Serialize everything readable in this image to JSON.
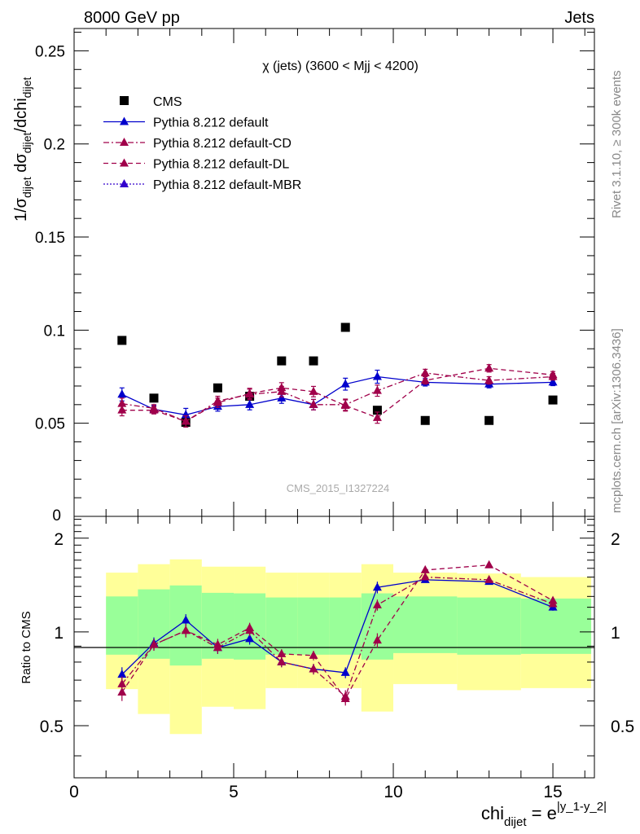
{
  "header": {
    "left": "8000 GeV pp",
    "right": "Jets",
    "side_top": "Rivet 3.1.10, ≥ 300k events",
    "side_bottom": "mcplots.cern.ch [arXiv:1306.3436]"
  },
  "chart_data": [
    {
      "type": "scatter",
      "title": "χ (jets) (3600 < Mjj < 4200)",
      "watermark": "CMS_2015_I1327224",
      "ylabel": "1/σdijet dσdijet/dchidijet",
      "ylim": [
        0,
        0.262
      ],
      "xlim": [
        0,
        16.3
      ],
      "yticks": [
        0.05,
        0.1,
        0.15,
        0.2,
        0.25
      ],
      "ytick_labels": [
        "0.05",
        "0.1",
        "0.15",
        "0.2",
        "0.25"
      ],
      "y_zero_label": "0",
      "legend_position": "top-left",
      "series": [
        {
          "name": "CMS",
          "style": "data",
          "color": "#000000",
          "x": [
            1.5,
            2.5,
            3.5,
            4.5,
            5.5,
            6.5,
            7.5,
            8.5,
            9.5,
            11,
            13,
            15
          ],
          "y": [
            0.0945,
            0.0635,
            0.0505,
            0.069,
            0.0645,
            0.0835,
            0.0835,
            0.1015,
            0.057,
            0.0515,
            0.0515,
            0.0625
          ]
        },
        {
          "name": "Pythia 8.212 default",
          "style": "solid",
          "color": "#0000cc",
          "x": [
            1.5,
            2.5,
            3.5,
            4.5,
            5.5,
            6.5,
            7.5,
            8.5,
            9.5,
            11,
            13,
            15
          ],
          "y": [
            0.0655,
            0.0575,
            0.0545,
            0.059,
            0.06,
            0.0635,
            0.06,
            0.071,
            0.075,
            0.072,
            0.071,
            0.072
          ],
          "err": [
            0.0035,
            0.002,
            0.0035,
            0.0025,
            0.0028,
            0.0028,
            0.0028,
            0.0032,
            0.0035,
            0.002,
            0.002,
            0.0018
          ]
        },
        {
          "name": "Pythia 8.212 default-CD",
          "style": "dashdot",
          "color": "#a0004a",
          "x": [
            1.5,
            2.5,
            3.5,
            4.5,
            5.5,
            6.5,
            7.5,
            8.5,
            9.5,
            11,
            13,
            15
          ],
          "y": [
            0.0605,
            0.058,
            0.051,
            0.062,
            0.0655,
            0.067,
            0.06,
            0.06,
            0.0675,
            0.077,
            0.073,
            0.075
          ],
          "err": [
            0.003,
            0.002,
            0.003,
            0.0025,
            0.0028,
            0.0028,
            0.0028,
            0.003,
            0.003,
            0.002,
            0.002,
            0.0018
          ]
        },
        {
          "name": "Pythia 8.212 default-DL",
          "style": "dashed",
          "color": "#a0004a",
          "x": [
            1.5,
            2.5,
            3.5,
            4.5,
            5.5,
            6.5,
            7.5,
            8.5,
            9.5,
            11,
            13,
            15
          ],
          "y": [
            0.057,
            0.057,
            0.051,
            0.061,
            0.066,
            0.069,
            0.067,
            0.0595,
            0.053,
            0.073,
            0.0795,
            0.076
          ],
          "err": [
            0.003,
            0.002,
            0.003,
            0.0025,
            0.0028,
            0.0028,
            0.0028,
            0.003,
            0.003,
            0.002,
            0.002,
            0.0018
          ]
        },
        {
          "name": "Pythia 8.212 default-MBR",
          "style": "dotted",
          "color": "#3300cc",
          "x": [],
          "y": []
        }
      ]
    },
    {
      "type": "scatter",
      "ylabel": "Ratio to CMS",
      "xlabel_main": "chi",
      "xlabel_sub": "dijet",
      "xlabel_eq": " = e",
      "xlabel_sup": "|y_1-y_2|",
      "ylim": [
        0.34,
        2.35
      ],
      "xlim": [
        0,
        16.3
      ],
      "yticks": [
        0.5,
        1,
        2
      ],
      "ytick_labels": [
        "0.5",
        "1",
        "2"
      ],
      "xticks": [
        0,
        5,
        10,
        15
      ],
      "xtick_labels": [
        "0",
        "5",
        "10",
        "15"
      ],
      "bands": {
        "edges": [
          1,
          2,
          3,
          4,
          5,
          6,
          7,
          8,
          9,
          10,
          12,
          14,
          16.2
        ],
        "inner_lo": [
          0.845,
          0.82,
          0.78,
          0.82,
          0.815,
          0.845,
          0.845,
          0.845,
          0.815,
          0.855,
          0.845,
          0.85
        ],
        "inner_hi": [
          1.3,
          1.37,
          1.41,
          1.335,
          1.33,
          1.29,
          1.29,
          1.29,
          1.33,
          1.3,
          1.29,
          1.28
        ],
        "outer_lo": [
          0.655,
          0.545,
          0.47,
          0.575,
          0.565,
          0.66,
          0.66,
          0.66,
          0.555,
          0.68,
          0.65,
          0.66
        ],
        "outer_hi": [
          1.55,
          1.65,
          1.71,
          1.62,
          1.62,
          1.55,
          1.55,
          1.55,
          1.65,
          1.55,
          1.54,
          1.5
        ],
        "inner_color": "#99ff99",
        "outer_color": "#ffff99"
      },
      "series": [
        {
          "name": "Pythia 8.212 default",
          "style": "solid",
          "color": "#0000cc",
          "x": [
            1.5,
            2.5,
            3.5,
            4.5,
            5.5,
            6.5,
            7.5,
            8.5,
            9.5,
            11,
            13,
            15
          ],
          "y": [
            0.73,
            0.92,
            1.09,
            0.89,
            0.95,
            0.8,
            0.76,
            0.74,
            1.39,
            1.47,
            1.45,
            1.2
          ],
          "err": [
            0.04,
            0.04,
            0.05,
            0.04,
            0.04,
            0.03,
            0.03,
            0.03,
            0.06,
            0.03,
            0.03,
            0.03
          ]
        },
        {
          "name": "Pythia 8.212 default-CD",
          "style": "dashdot",
          "color": "#a0004a",
          "x": [
            1.5,
            2.5,
            3.5,
            4.5,
            5.5,
            6.5,
            7.5,
            8.5,
            9.5,
            11,
            13,
            15
          ],
          "y": [
            0.68,
            0.91,
            1.01,
            0.89,
            1.01,
            0.8,
            0.76,
            0.62,
            1.22,
            1.5,
            1.47,
            1.23
          ],
          "err": [
            0.04,
            0.04,
            0.05,
            0.04,
            0.04,
            0.03,
            0.03,
            0.03,
            0.05,
            0.03,
            0.03,
            0.03
          ]
        },
        {
          "name": "Pythia 8.212 default-DL",
          "style": "dashed",
          "color": "#a0004a",
          "x": [
            1.5,
            2.5,
            3.5,
            4.5,
            5.5,
            6.5,
            7.5,
            8.5,
            9.5,
            11,
            13,
            15
          ],
          "y": [
            0.64,
            0.91,
            1.01,
            0.91,
            1.03,
            0.85,
            0.84,
            0.61,
            0.94,
            1.58,
            1.64,
            1.26
          ],
          "err": [
            0.04,
            0.04,
            0.05,
            0.04,
            0.04,
            0.03,
            0.03,
            0.03,
            0.05,
            0.03,
            0.03,
            0.03
          ]
        }
      ]
    }
  ]
}
